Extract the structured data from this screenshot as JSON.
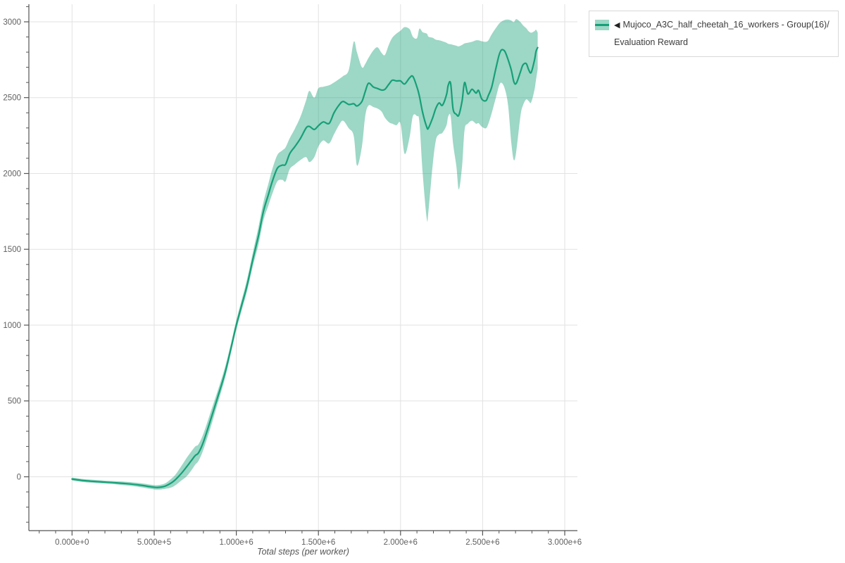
{
  "page": {
    "background": "#ffffff"
  },
  "legend": {
    "collapse_glyph": "◀",
    "label": "Mujoco_A3C_half_cheetah_16_workers - Group(16)/Evaluation Reward",
    "swatch": {
      "band_fill": "rgba(22,160,119,0.42)",
      "line_color": "#16a077"
    }
  },
  "chart_data": {
    "type": "line",
    "title": "",
    "xlabel": "Total steps (per worker)",
    "ylabel": "",
    "grid": true,
    "legend_position": "top-right",
    "style": {
      "grid_color": "#e2e2e2",
      "axis_color": "#555555",
      "tick_label_color": "#606060",
      "background": "#ffffff"
    },
    "x_axis": {
      "min": -263000,
      "max": 3077000,
      "major_ticks": [
        {
          "value": 0,
          "label": "0.000e+0"
        },
        {
          "value": 500000,
          "label": "5.000e+5"
        },
        {
          "value": 1000000,
          "label": "1.000e+6"
        },
        {
          "value": 1500000,
          "label": "1.500e+6"
        },
        {
          "value": 2000000,
          "label": "2.000e+6"
        },
        {
          "value": 2500000,
          "label": "2.500e+6"
        },
        {
          "value": 3000000,
          "label": "3.000e+6"
        }
      ],
      "minor": {
        "start": -200000,
        "end": 3000000,
        "step": 100000,
        "skip_every": 500000
      }
    },
    "y_axis": {
      "min": -355,
      "max": 3116,
      "major_ticks": [
        {
          "value": 0,
          "label": "0"
        },
        {
          "value": 500,
          "label": "500"
        },
        {
          "value": 1000,
          "label": "1000"
        },
        {
          "value": 1500,
          "label": "1500"
        },
        {
          "value": 2000,
          "label": "2000"
        },
        {
          "value": 2500,
          "label": "2500"
        },
        {
          "value": 3000,
          "label": "3000"
        }
      ],
      "minor": {
        "start": -300,
        "end": 3100,
        "step": 100,
        "skip_every": 500
      }
    },
    "series": [
      {
        "name": "Mujoco_A3C_half_cheetah_16_workers - Group(16)/Evaluation Reward",
        "color": "#16a077",
        "band_opacity": 0.42,
        "x": [
          0,
          70000,
          155000,
          245000,
          330000,
          415000,
          480000,
          520000,
          565000,
          605000,
          630000,
          665000,
          695000,
          725000,
          750000,
          770000,
          800000,
          845000,
          885000,
          930000,
          970000,
          1000000,
          1035000,
          1065000,
          1100000,
          1135000,
          1165000,
          1195000,
          1220000,
          1250000,
          1280000,
          1300000,
          1325000,
          1355000,
          1390000,
          1425000,
          1445000,
          1475000,
          1500000,
          1530000,
          1565000,
          1595000,
          1625000,
          1650000,
          1685000,
          1715000,
          1735000,
          1765000,
          1785000,
          1805000,
          1835000,
          1860000,
          1885000,
          1905000,
          1930000,
          1950000,
          1975000,
          2000000,
          2025000,
          2055000,
          2075000,
          2100000,
          2115000,
          2135000,
          2160000,
          2170000,
          2195000,
          2215000,
          2235000,
          2255000,
          2280000,
          2290000,
          2305000,
          2320000,
          2340000,
          2355000,
          2375000,
          2390000,
          2410000,
          2435000,
          2460000,
          2475000,
          2495000,
          2520000,
          2535000,
          2555000,
          2580000,
          2600000,
          2615000,
          2635000,
          2655000,
          2675000,
          2690000,
          2705000,
          2730000,
          2745000,
          2765000,
          2780000,
          2795000,
          2815000,
          2825000,
          2835000
        ],
        "mean": [
          -15,
          -25,
          -32,
          -38,
          -45,
          -55,
          -66,
          -70,
          -62,
          -40,
          -18,
          22,
          62,
          105,
          140,
          158,
          230,
          380,
          520,
          680,
          860,
          1000,
          1140,
          1260,
          1430,
          1590,
          1750,
          1860,
          1950,
          2035,
          2055,
          2060,
          2130,
          2175,
          2230,
          2300,
          2310,
          2290,
          2315,
          2340,
          2330,
          2400,
          2450,
          2475,
          2455,
          2460,
          2445,
          2475,
          2540,
          2595,
          2570,
          2560,
          2550,
          2555,
          2590,
          2615,
          2610,
          2610,
          2590,
          2630,
          2640,
          2570,
          2510,
          2400,
          2305,
          2300,
          2365,
          2430,
          2465,
          2450,
          2520,
          2580,
          2595,
          2425,
          2390,
          2385,
          2480,
          2600,
          2525,
          2555,
          2530,
          2548,
          2490,
          2480,
          2515,
          2570,
          2690,
          2780,
          2815,
          2805,
          2750,
          2680,
          2605,
          2595,
          2670,
          2715,
          2725,
          2685,
          2665,
          2745,
          2805,
          2830
        ],
        "lo": [
          -25,
          -35,
          -42,
          -48,
          -57,
          -68,
          -80,
          -85,
          -80,
          -70,
          -55,
          -25,
          0,
          40,
          80,
          105,
          180,
          330,
          478,
          643,
          828,
          968,
          1105,
          1222,
          1385,
          1532,
          1690,
          1788,
          1868,
          1948,
          1958,
          1948,
          2028,
          2058,
          2088,
          2108,
          2075,
          2108,
          2178,
          2218,
          2198,
          2258,
          2318,
          2348,
          2298,
          2248,
          2052,
          2178,
          2378,
          2448,
          2438,
          2428,
          2408,
          2368,
          2338,
          2328,
          2318,
          2328,
          2130,
          2238,
          2378,
          2378,
          2338,
          2000,
          1700,
          1752,
          2048,
          2218,
          2258,
          2268,
          2318,
          2375,
          2378,
          2198,
          2048,
          1895,
          2052,
          2288,
          2328,
          2348,
          2328,
          2332,
          2308,
          2298,
          2328,
          2398,
          2498,
          2578,
          2598,
          2558,
          2448,
          2198,
          2088,
          2148,
          2378,
          2448,
          2488,
          2478,
          2468,
          2548,
          2618,
          2688
        ],
        "hi": [
          -5,
          -15,
          -22,
          -28,
          -33,
          -42,
          -52,
          -55,
          -44,
          -12,
          15,
          70,
          120,
          165,
          200,
          215,
          285,
          430,
          562,
          717,
          892,
          1032,
          1175,
          1300,
          1475,
          1648,
          1810,
          1932,
          2032,
          2122,
          2152,
          2172,
          2232,
          2292,
          2372,
          2482,
          2545,
          2500,
          2562,
          2572,
          2582,
          2600,
          2622,
          2642,
          2682,
          2868,
          2798,
          2700,
          2722,
          2762,
          2812,
          2832,
          2795,
          2782,
          2852,
          2895,
          2922,
          2942,
          2965,
          2952,
          2902,
          2892,
          2955,
          2932,
          2922,
          2902,
          2895,
          2882,
          2878,
          2872,
          2862,
          2855,
          2852,
          2848,
          2842,
          2838,
          2848,
          2858,
          2862,
          2868,
          2878,
          2878,
          2872,
          2868,
          2878,
          2918,
          2958,
          2988,
          3002,
          3012,
          3015,
          3008,
          2998,
          3018,
          2998,
          2978,
          2958,
          2938,
          2928,
          2938,
          2948,
          2928
        ]
      }
    ]
  }
}
